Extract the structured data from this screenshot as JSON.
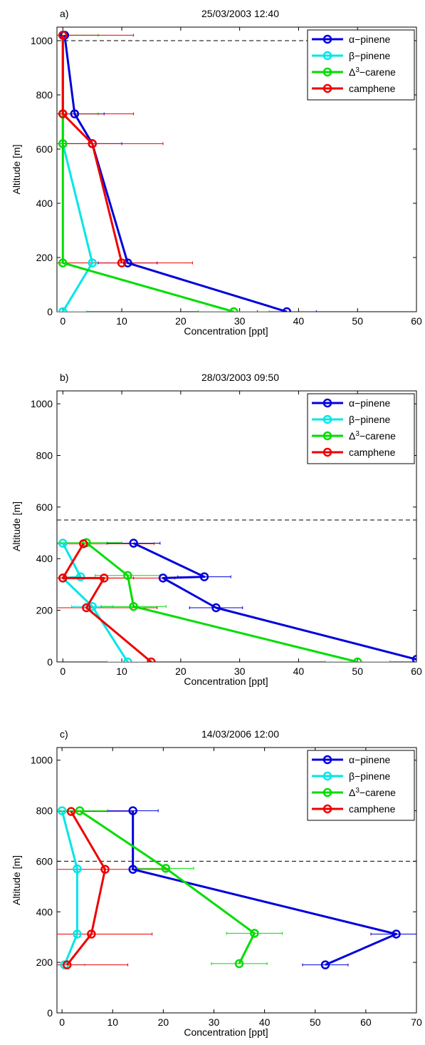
{
  "chart_data": [
    {
      "type": "line",
      "panel_label": "a)",
      "title": "25/03/2003  12:40",
      "xlabel": "Concentration [ppt]",
      "ylabel": "Altitude [m]",
      "xlim": [
        -1,
        60
      ],
      "ylim": [
        0,
        1050
      ],
      "xticks": [
        0,
        10,
        20,
        30,
        40,
        50,
        60
      ],
      "yticks": [
        0,
        200,
        400,
        600,
        800,
        1000
      ],
      "boundary_altitude": 1000,
      "legend": "top-right",
      "series": [
        {
          "name": "α−pinene",
          "color": "#0000dd",
          "x": [
            38,
            11,
            5,
            2,
            0.3
          ],
          "y": [
            0,
            180,
            620,
            730,
            1020
          ],
          "err": [
            5,
            5,
            5,
            5,
            0
          ]
        },
        {
          "name": "β−pinene",
          "color": "#00e6e6",
          "x": [
            0,
            5,
            0,
            0,
            0
          ],
          "y": [
            0,
            180,
            620,
            730,
            1020
          ],
          "err": [
            4,
            0,
            0,
            0,
            0
          ]
        },
        {
          "name": "Δ3−carene",
          "color": "#00dd00",
          "x": [
            29,
            0,
            0,
            0,
            0
          ],
          "y": [
            0,
            180,
            620,
            730,
            1020
          ],
          "err": [
            6,
            0,
            0,
            6,
            6
          ]
        },
        {
          "name": "camphene",
          "color": "#ee0000",
          "x": [
            10,
            5,
            0,
            0
          ],
          "y": [
            180,
            620,
            730,
            1020
          ],
          "err": [
            12,
            12,
            12,
            12
          ]
        }
      ]
    },
    {
      "type": "line",
      "panel_label": "b)",
      "title": "28/03/2003  09:50",
      "xlabel": "Concentration [ppt]",
      "ylabel": "Altitude [m]",
      "xlim": [
        -1,
        60
      ],
      "ylim": [
        0,
        1050
      ],
      "xticks": [
        0,
        10,
        20,
        30,
        40,
        50,
        60
      ],
      "yticks": [
        0,
        200,
        400,
        600,
        800,
        1000
      ],
      "boundary_altitude": 550,
      "legend": "top-right",
      "series": [
        {
          "name": "α−pinene",
          "color": "#0000dd",
          "x": [
            60,
            26,
            17,
            24,
            12
          ],
          "y": [
            10,
            210,
            325,
            330,
            460
          ],
          "err": [
            0,
            4.5,
            0,
            4.5,
            4.5
          ]
        },
        {
          "name": "β−pinene",
          "color": "#00e6e6",
          "x": [
            11,
            5,
            0,
            3,
            0
          ],
          "y": [
            0,
            215,
            325,
            330,
            460
          ],
          "err": [
            3.5,
            3.5,
            0,
            0,
            0
          ]
        },
        {
          "name": "Δ3−carene",
          "color": "#00dd00",
          "x": [
            50,
            12,
            11,
            4
          ],
          "y": [
            0,
            215,
            335,
            462
          ],
          "err": [
            5.5,
            5.5,
            5.5,
            6
          ]
        },
        {
          "name": "camphene",
          "color": "#ee0000",
          "x": [
            15,
            4,
            7,
            0,
            3.5
          ],
          "y": [
            0,
            210,
            325,
            325,
            458
          ],
          "err": [
            0,
            12,
            12,
            12,
            12
          ]
        }
      ]
    },
    {
      "type": "line",
      "panel_label": "c)",
      "title": "14/03/2006  12:00",
      "xlabel": "Concentration [ppt]",
      "ylabel": "Altitude [m]",
      "xlim": [
        -1,
        70
      ],
      "ylim": [
        0,
        1050
      ],
      "xticks": [
        0,
        10,
        20,
        30,
        40,
        50,
        60,
        70
      ],
      "yticks": [
        0,
        200,
        400,
        600,
        800,
        1000
      ],
      "boundary_altitude": 600,
      "legend": "top-right",
      "series": [
        {
          "name": "α−pinene",
          "color": "#0000dd",
          "x": [
            52,
            66,
            14,
            14
          ],
          "y": [
            190,
            312,
            568,
            800
          ],
          "err": [
            4.5,
            5,
            0,
            5
          ]
        },
        {
          "name": "β−pinene",
          "color": "#00e6e6",
          "x": [
            0.5,
            3,
            3,
            0
          ],
          "y": [
            190,
            312,
            570,
            800
          ],
          "err": [
            4,
            0,
            0,
            0
          ]
        },
        {
          "name": "Δ3−carene",
          "color": "#00dd00",
          "x": [
            35,
            38,
            20.5,
            3.5
          ],
          "y": [
            195,
            315,
            572,
            800
          ],
          "err": [
            5.5,
            5.5,
            5.5,
            5.5
          ]
        },
        {
          "name": "camphene",
          "color": "#ee0000",
          "x": [
            1,
            5.8,
            8.5,
            1.8
          ],
          "y": [
            190,
            312,
            568,
            797
          ],
          "err": [
            12,
            12,
            12,
            12
          ]
        }
      ]
    }
  ]
}
